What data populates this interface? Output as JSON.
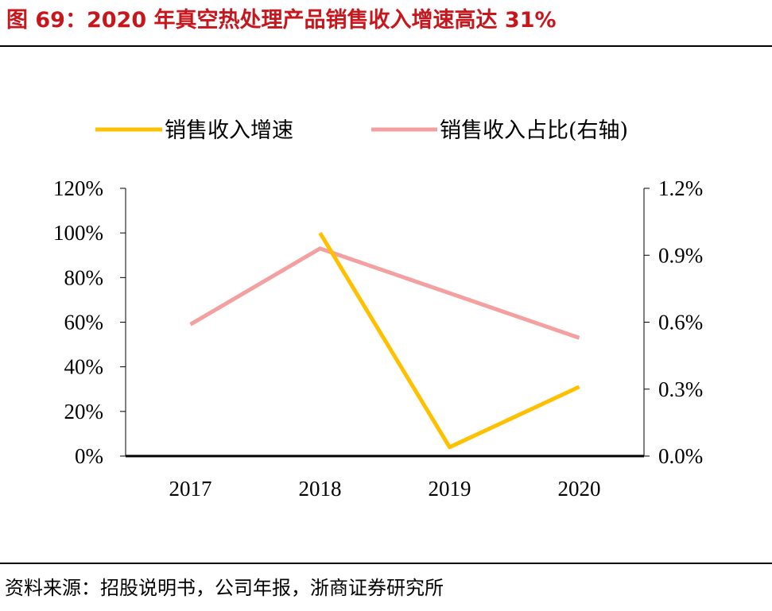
{
  "figure": {
    "title": "图 69：2020 年真空热处理产品销售收入增速高达 31%",
    "source": "资料来源：招股说明书，公司年报，浙商证券研究所"
  },
  "chart_data": {
    "type": "line",
    "categories": [
      "2017",
      "2018",
      "2019",
      "2020"
    ],
    "series": [
      {
        "name": "销售收入增速",
        "axis": "left",
        "color": "#ffc000",
        "values": [
          null,
          1.0,
          0.04,
          0.31
        ]
      },
      {
        "name": "销售收入占比(右轴)",
        "axis": "right",
        "color": "#f4a0a0",
        "values": [
          0.0059,
          0.0093,
          0.0073,
          0.0053
        ]
      }
    ],
    "y_left": {
      "min": 0,
      "max": 1.2,
      "ticks": [
        0,
        0.2,
        0.4,
        0.6,
        0.8,
        1.0,
        1.2
      ],
      "tick_labels": [
        "0%",
        "20%",
        "40%",
        "60%",
        "80%",
        "100%",
        "120%"
      ]
    },
    "y_right": {
      "min": 0,
      "max": 0.012,
      "ticks": [
        0,
        0.003,
        0.006,
        0.009,
        0.012
      ],
      "tick_labels": [
        "0.0%",
        "0.3%",
        "0.6%",
        "0.9%",
        "1.2%"
      ]
    },
    "grid": false,
    "legend_position": "top-center"
  }
}
